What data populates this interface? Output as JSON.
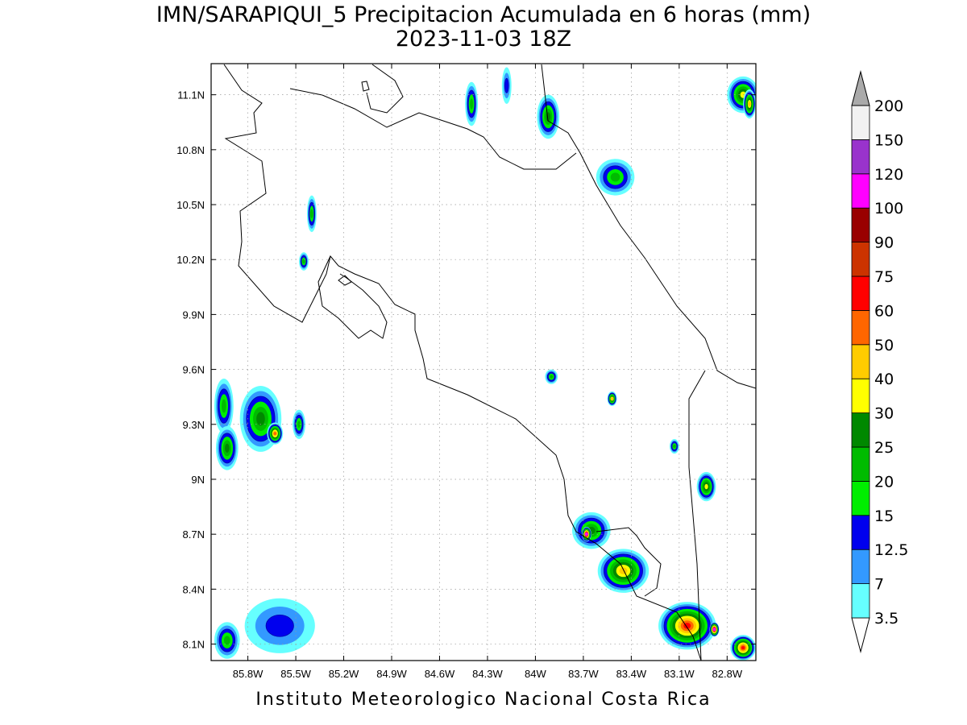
{
  "title": {
    "line1": "IMN/SARAPIQUI_5 Precipitacion Acumulada en 6 horas (mm)",
    "line2": "2023-11-03 18Z"
  },
  "credit": "Instituto Meteorologico Nacional Costa Rica",
  "map": {
    "lon_range": [
      -86.03,
      -82.62
    ],
    "lat_range": [
      8.01,
      11.27
    ],
    "lon_ticks": [
      {
        "value": -85.8,
        "label": "85.8W"
      },
      {
        "value": -85.5,
        "label": "85.5W"
      },
      {
        "value": -85.2,
        "label": "85.2W"
      },
      {
        "value": -84.9,
        "label": "84.9W"
      },
      {
        "value": -84.6,
        "label": "84.6W"
      },
      {
        "value": -84.3,
        "label": "84.3W"
      },
      {
        "value": -84.0,
        "label": "84W"
      },
      {
        "value": -83.7,
        "label": "83.7W"
      },
      {
        "value": -83.4,
        "label": "83.4W"
      },
      {
        "value": -83.1,
        "label": "83.1W"
      },
      {
        "value": -82.8,
        "label": "82.8W"
      }
    ],
    "lat_ticks": [
      {
        "value": 8.1,
        "label": "8.1N"
      },
      {
        "value": 8.4,
        "label": "8.4N"
      },
      {
        "value": 8.7,
        "label": "8.7N"
      },
      {
        "value": 9.0,
        "label": "9N"
      },
      {
        "value": 9.3,
        "label": "9.3N"
      },
      {
        "value": 9.6,
        "label": "9.6N"
      },
      {
        "value": 9.9,
        "label": "9.9N"
      },
      {
        "value": 10.2,
        "label": "10.2N"
      },
      {
        "value": 10.5,
        "label": "10.5N"
      },
      {
        "value": 10.8,
        "label": "10.8N"
      },
      {
        "value": 11.1,
        "label": "11.1N"
      }
    ],
    "grid": true
  },
  "legend": {
    "units": "mm",
    "bins": [
      {
        "label": "3.5",
        "color": "#66ffff"
      },
      {
        "label": "7",
        "color": "#3399ff"
      },
      {
        "label": "12.5",
        "color": "#0000ee"
      },
      {
        "label": "15",
        "color": "#00ee00"
      },
      {
        "label": "20",
        "color": "#00bb00"
      },
      {
        "label": "25",
        "color": "#008800"
      },
      {
        "label": "30",
        "color": "#ffff00"
      },
      {
        "label": "40",
        "color": "#ffcc00"
      },
      {
        "label": "50",
        "color": "#ff6600"
      },
      {
        "label": "60",
        "color": "#ff0000"
      },
      {
        "label": "75",
        "color": "#cc3300"
      },
      {
        "label": "90",
        "color": "#990000"
      },
      {
        "label": "100",
        "color": "#ff00ff"
      },
      {
        "label": "120",
        "color": "#9933cc"
      },
      {
        "label": "150",
        "color": "#f2f2f2"
      },
      {
        "label": "200",
        "color": "#aaaaaa"
      }
    ]
  },
  "precip_cells": [
    {
      "lon": -85.95,
      "lat": 9.4,
      "rx": 0.06,
      "ry": 0.15,
      "level": 4
    },
    {
      "lon": -85.93,
      "lat": 9.17,
      "rx": 0.07,
      "ry": 0.12,
      "level": 5
    },
    {
      "lon": -85.72,
      "lat": 9.33,
      "rx": 0.13,
      "ry": 0.18,
      "level": 5
    },
    {
      "lon": -85.63,
      "lat": 9.25,
      "rx": 0.05,
      "ry": 0.06,
      "level": 8
    },
    {
      "lon": -85.48,
      "lat": 9.3,
      "rx": 0.04,
      "ry": 0.08,
      "level": 4
    },
    {
      "lon": -85.4,
      "lat": 10.45,
      "rx": 0.03,
      "ry": 0.1,
      "level": 4
    },
    {
      "lon": -85.45,
      "lat": 10.19,
      "rx": 0.03,
      "ry": 0.05,
      "level": 4
    },
    {
      "lon": -85.93,
      "lat": 8.12,
      "rx": 0.08,
      "ry": 0.1,
      "level": 4
    },
    {
      "lon": -85.6,
      "lat": 8.2,
      "rx": 0.22,
      "ry": 0.15,
      "level": 2
    },
    {
      "lon": -84.4,
      "lat": 11.05,
      "rx": 0.04,
      "ry": 0.12,
      "level": 4
    },
    {
      "lon": -84.18,
      "lat": 11.15,
      "rx": 0.03,
      "ry": 0.1,
      "level": 2
    },
    {
      "lon": -83.92,
      "lat": 10.98,
      "rx": 0.07,
      "ry": 0.12,
      "level": 5
    },
    {
      "lon": -83.5,
      "lat": 10.65,
      "rx": 0.12,
      "ry": 0.1,
      "level": 4
    },
    {
      "lon": -82.7,
      "lat": 11.1,
      "rx": 0.1,
      "ry": 0.1,
      "level": 6
    },
    {
      "lon": -82.66,
      "lat": 11.05,
      "rx": 0.04,
      "ry": 0.08,
      "level": 7
    },
    {
      "lon": -83.9,
      "lat": 9.56,
      "rx": 0.04,
      "ry": 0.04,
      "level": 4
    },
    {
      "lon": -83.52,
      "lat": 9.44,
      "rx": 0.03,
      "ry": 0.04,
      "level": 7
    },
    {
      "lon": -83.13,
      "lat": 9.18,
      "rx": 0.03,
      "ry": 0.04,
      "level": 4
    },
    {
      "lon": -82.93,
      "lat": 8.96,
      "rx": 0.06,
      "ry": 0.08,
      "level": 6
    },
    {
      "lon": -83.65,
      "lat": 8.72,
      "rx": 0.12,
      "ry": 0.1,
      "level": 5
    },
    {
      "lon": -83.68,
      "lat": 8.7,
      "rx": 0.03,
      "ry": 0.04,
      "level": 12
    },
    {
      "lon": -83.45,
      "lat": 8.5,
      "rx": 0.16,
      "ry": 0.12,
      "level": 7
    },
    {
      "lon": -83.05,
      "lat": 8.2,
      "rx": 0.18,
      "ry": 0.13,
      "level": 9
    },
    {
      "lon": -82.88,
      "lat": 8.18,
      "rx": 0.03,
      "ry": 0.04,
      "level": 12
    },
    {
      "lon": -82.7,
      "lat": 8.08,
      "rx": 0.08,
      "ry": 0.07,
      "level": 9
    }
  ]
}
